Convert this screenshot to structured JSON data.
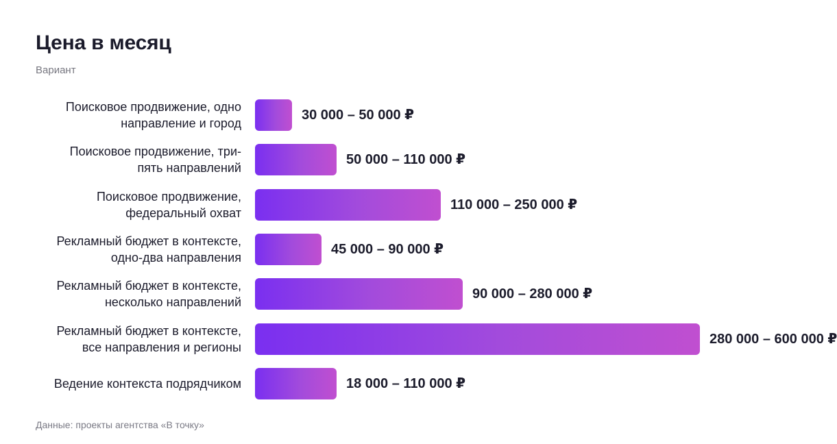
{
  "title": "Цена в месяц",
  "subtitle": "Вариант",
  "footer": "Данные: проекты агентства «В точку»",
  "chart_data": {
    "type": "bar",
    "orientation": "horizontal",
    "title": "Цена в месяц",
    "subtitle": "Вариант",
    "unit": "₽",
    "xlim": [
      0,
      600000
    ],
    "grid": false,
    "categories": [
      [
        "Поисковое продвижение, одно",
        "направление и город"
      ],
      [
        "Поисковое продвижение, три-",
        "пять направлений"
      ],
      [
        "Поисковое продвижение,",
        "федеральный охват"
      ],
      [
        "Рекламный бюджет в контексте,",
        "одно-два направления"
      ],
      [
        "Рекламный бюджет в контексте,",
        "несколько направлений"
      ],
      [
        "Рекламный бюджет в контексте,",
        "все направления и регионы"
      ],
      [
        "Ведение контекста подрядчиком"
      ]
    ],
    "ranges": [
      [
        30000,
        50000
      ],
      [
        50000,
        110000
      ],
      [
        110000,
        250000
      ],
      [
        45000,
        90000
      ],
      [
        90000,
        280000
      ],
      [
        280000,
        600000
      ],
      [
        18000,
        110000
      ]
    ],
    "values": [
      50000,
      110000,
      250000,
      90000,
      280000,
      600000,
      110000
    ],
    "data_labels": [
      "30 000 – 50 000 ₽",
      "50 000 – 110 000 ₽",
      "110 000 – 250 000 ₽",
      "45 000 – 90 000 ₽",
      "90 000 – 280 000 ₽",
      "280 000 – 600 000 ₽",
      "18 000 – 110 000 ₽"
    ],
    "colors": {
      "gradient_start": "#7a2ff0",
      "gradient_end": "#c04fd0"
    }
  }
}
